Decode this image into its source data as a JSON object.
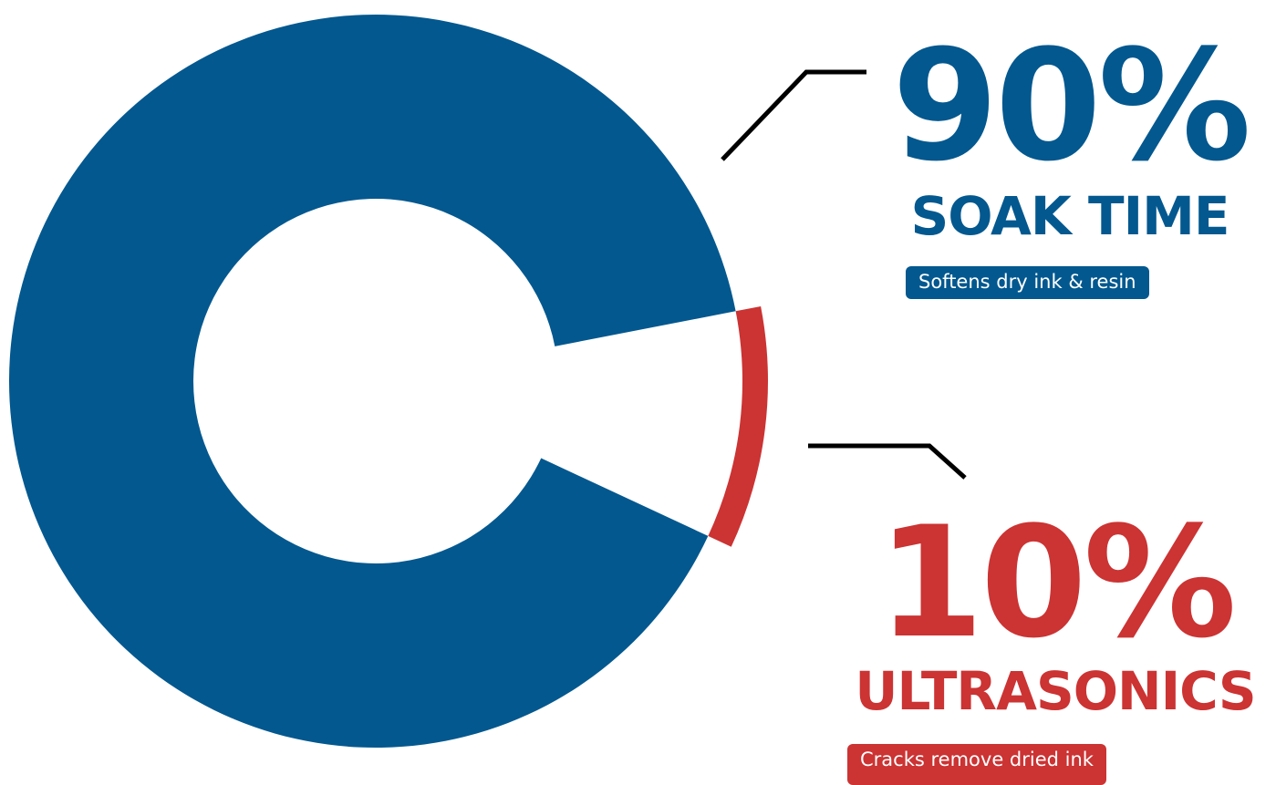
{
  "colors": {
    "primary": "#02588F",
    "accent": "#CC3333",
    "leader": "#000000",
    "background": "#FFFFFF"
  },
  "chart_data": {
    "type": "pie",
    "variant": "donut",
    "slices": [
      {
        "percent_text": "90%",
        "label": "SOAK TIME",
        "note": "Softens dry ink & resin",
        "value": 90,
        "color": "#02588F"
      },
      {
        "percent_text": "10%",
        "label": "ULTRASONICS",
        "note": "Cracks remove dried ink",
        "value": 10,
        "color": "#CC3333"
      }
    ]
  }
}
